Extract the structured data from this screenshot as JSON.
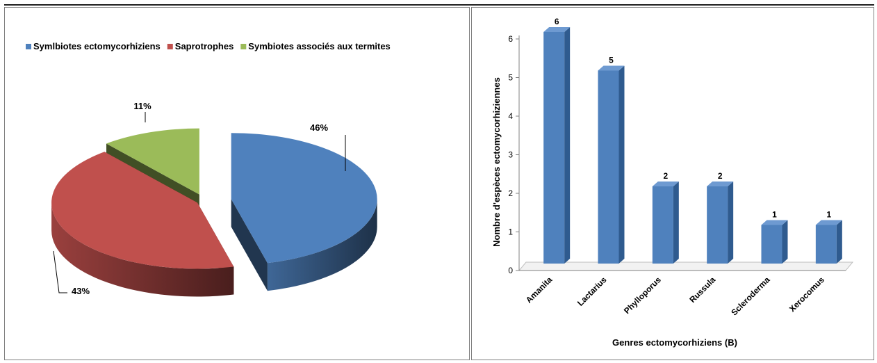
{
  "chart_data": [
    {
      "type": "pie",
      "title": "",
      "legend_position": "top",
      "series": [
        {
          "name": "Symlbiotes ectomycorhiziens",
          "value": 46,
          "label": "46%",
          "color": "#4F81BD"
        },
        {
          "name": "Saprotrophes",
          "value": 43,
          "label": "43%",
          "color": "#C0504D"
        },
        {
          "name": "Symbiotes associés aux termites",
          "value": 11,
          "label": "11%",
          "color": "#9BBB59"
        }
      ]
    },
    {
      "type": "bar",
      "title": "",
      "xlabel": "Genres ectomycorhiziens (B)",
      "ylabel": "Nombre d'espèces ectomycorhiziennes",
      "ylim": [
        0,
        6
      ],
      "yticks": [
        "0",
        "1",
        "2",
        "3",
        "4",
        "5",
        "6"
      ],
      "categories": [
        "Amanita",
        "Lactarius",
        "Phylloporus",
        "Russula",
        "Scleroderma",
        "Xerocomus"
      ],
      "values": [
        6,
        5,
        2,
        2,
        1,
        1
      ],
      "data_labels": [
        "6",
        "5",
        "2",
        "2",
        "1",
        "1"
      ],
      "color": "#4F81BD",
      "grid": false,
      "legend": false
    }
  ]
}
